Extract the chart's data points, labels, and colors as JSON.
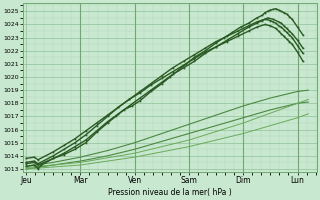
{
  "xlabel": "Pression niveau de la mer( hPa )",
  "bg_color": "#c8e8d0",
  "plot_bg_color": "#c8e8d0",
  "grid_minor_color": "#b0d8b8",
  "grid_major_color": "#90c098",
  "dark_green": "#2a5a22",
  "ylim": [
    1012.8,
    1025.6
  ],
  "yticks": [
    1013,
    1014,
    1015,
    1016,
    1017,
    1018,
    1019,
    1020,
    1021,
    1022,
    1023,
    1024,
    1025
  ],
  "days": [
    "Jeu",
    "Mar",
    "Ven",
    "Sam",
    "Dim",
    "Lun"
  ],
  "day_positions": [
    0.0,
    1.0,
    2.0,
    3.0,
    4.0,
    5.0
  ],
  "xlim": [
    -0.05,
    5.35
  ],
  "series_dark": [
    {
      "x": [
        0.0,
        0.15,
        0.18,
        0.22,
        0.28,
        0.5,
        0.7,
        0.9,
        1.1,
        1.3,
        1.5,
        1.65,
        1.8,
        1.95,
        2.1,
        2.3,
        2.5,
        2.65,
        2.8,
        2.95,
        3.1,
        3.3,
        3.5,
        3.65,
        3.8,
        3.95,
        4.1,
        4.25,
        4.35,
        4.4,
        4.45,
        4.5,
        4.55,
        4.6,
        4.65,
        4.7,
        4.75,
        4.8,
        4.85,
        4.9,
        5.0,
        5.1
      ],
      "y": [
        1013.2,
        1013.3,
        1013.2,
        1013.0,
        1013.3,
        1013.8,
        1014.1,
        1014.5,
        1015.0,
        1015.8,
        1016.5,
        1017.0,
        1017.5,
        1017.8,
        1018.2,
        1018.9,
        1019.5,
        1020.0,
        1020.5,
        1021.0,
        1021.5,
        1022.0,
        1022.6,
        1023.0,
        1023.4,
        1023.8,
        1024.1,
        1024.5,
        1024.7,
        1024.9,
        1025.0,
        1025.1,
        1025.15,
        1025.2,
        1025.1,
        1025.0,
        1024.9,
        1024.8,
        1024.6,
        1024.4,
        1023.8,
        1023.2
      ]
    },
    {
      "x": [
        0.0,
        0.15,
        0.22,
        0.5,
        0.7,
        0.9,
        1.1,
        1.3,
        1.5,
        1.7,
        1.9,
        2.1,
        2.3,
        2.5,
        2.7,
        2.9,
        3.1,
        3.3,
        3.5,
        3.7,
        3.9,
        4.1,
        4.25,
        4.35,
        4.45,
        4.55,
        4.65,
        4.7,
        4.75,
        4.8,
        4.85,
        4.9,
        5.0,
        5.1
      ],
      "y": [
        1013.4,
        1013.5,
        1013.3,
        1013.8,
        1014.2,
        1014.7,
        1015.2,
        1015.9,
        1016.6,
        1017.2,
        1017.8,
        1018.4,
        1019.0,
        1019.6,
        1020.2,
        1020.7,
        1021.2,
        1021.8,
        1022.3,
        1022.8,
        1023.3,
        1023.8,
        1024.1,
        1024.3,
        1024.5,
        1024.4,
        1024.2,
        1024.1,
        1023.9,
        1023.7,
        1023.5,
        1023.3,
        1022.8,
        1022.2
      ]
    },
    {
      "x": [
        0.0,
        0.15,
        0.22,
        0.5,
        0.7,
        0.9,
        1.1,
        1.3,
        1.5,
        1.7,
        1.9,
        2.1,
        2.3,
        2.5,
        2.7,
        2.9,
        3.1,
        3.3,
        3.5,
        3.7,
        3.9,
        4.1,
        4.25,
        4.4,
        4.5,
        4.55,
        4.6,
        4.65,
        4.7,
        4.75,
        4.8,
        4.85,
        4.9,
        5.0,
        5.1
      ],
      "y": [
        1013.5,
        1013.6,
        1013.4,
        1014.0,
        1014.5,
        1015.0,
        1015.6,
        1016.3,
        1017.0,
        1017.7,
        1018.3,
        1018.9,
        1019.5,
        1020.1,
        1020.7,
        1021.2,
        1021.7,
        1022.2,
        1022.7,
        1023.1,
        1023.5,
        1023.9,
        1024.2,
        1024.4,
        1024.3,
        1024.2,
        1024.1,
        1023.9,
        1023.8,
        1023.6,
        1023.4,
        1023.2,
        1023.0,
        1022.4,
        1021.8
      ]
    },
    {
      "x": [
        0.0,
        0.15,
        0.22,
        0.5,
        0.7,
        0.9,
        1.1,
        1.3,
        1.5,
        1.7,
        1.9,
        2.1,
        2.3,
        2.5,
        2.7,
        2.9,
        3.1,
        3.3,
        3.5,
        3.7,
        3.9,
        4.1,
        4.25,
        4.4,
        4.5,
        4.6,
        4.65,
        4.7,
        4.75,
        4.8,
        4.85,
        4.9,
        5.0,
        5.1
      ],
      "y": [
        1013.8,
        1013.9,
        1013.7,
        1014.3,
        1014.8,
        1015.3,
        1015.9,
        1016.5,
        1017.1,
        1017.7,
        1018.3,
        1018.8,
        1019.4,
        1019.9,
        1020.4,
        1020.9,
        1021.4,
        1021.9,
        1022.3,
        1022.7,
        1023.1,
        1023.5,
        1023.8,
        1024.0,
        1023.9,
        1023.7,
        1023.5,
        1023.3,
        1023.1,
        1022.9,
        1022.7,
        1022.5,
        1021.9,
        1021.2
      ]
    }
  ],
  "series_light": [
    {
      "x": [
        0.0,
        0.5,
        1.0,
        1.5,
        2.0,
        2.5,
        3.0,
        3.5,
        4.0,
        4.5,
        4.8,
        5.0,
        5.2
      ],
      "y": [
        1013.2,
        1013.5,
        1013.9,
        1014.4,
        1015.0,
        1015.7,
        1016.4,
        1017.1,
        1017.8,
        1018.4,
        1018.7,
        1018.9,
        1019.0
      ],
      "color": "#4a8840",
      "lw": 0.8
    },
    {
      "x": [
        0.0,
        0.5,
        1.0,
        1.5,
        2.0,
        2.5,
        3.0,
        3.5,
        4.0,
        4.5,
        4.8,
        5.0,
        5.2
      ],
      "y": [
        1013.0,
        1013.3,
        1013.6,
        1014.0,
        1014.5,
        1015.1,
        1015.7,
        1016.3,
        1016.9,
        1017.5,
        1017.8,
        1018.0,
        1018.1
      ],
      "color": "#4a8840",
      "lw": 0.8
    },
    {
      "x": [
        0.0,
        1.0,
        2.0,
        3.0,
        4.0,
        5.0,
        5.2
      ],
      "y": [
        1013.1,
        1013.5,
        1014.2,
        1015.2,
        1016.5,
        1018.0,
        1018.3
      ],
      "color": "#6aaa5a",
      "lw": 0.7
    },
    {
      "x": [
        0.0,
        1.0,
        2.0,
        3.0,
        4.0,
        5.0,
        5.2
      ],
      "y": [
        1013.0,
        1013.3,
        1013.9,
        1014.7,
        1015.7,
        1016.9,
        1017.2
      ],
      "color": "#6aaa5a",
      "lw": 0.7
    }
  ],
  "vline_positions": [
    1.0,
    2.0,
    3.0,
    4.0,
    5.0
  ],
  "vline_color": "#70a870"
}
